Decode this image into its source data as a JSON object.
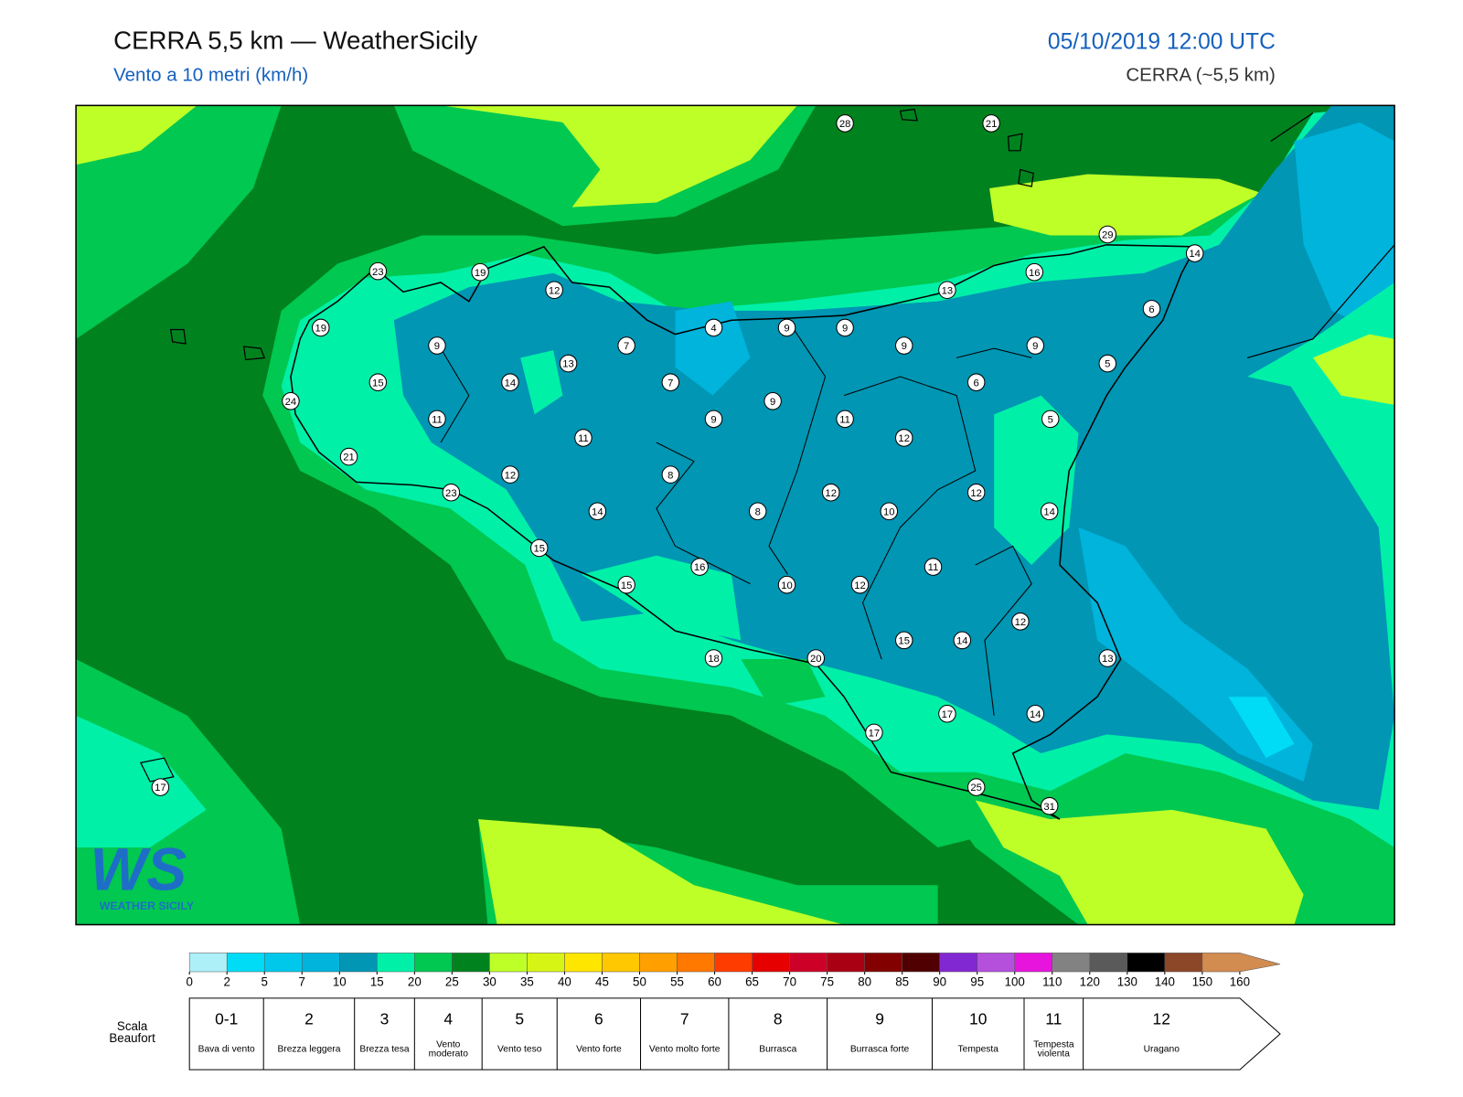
{
  "header": {
    "title": "CERRA 5,5 km — WeatherSicily",
    "subtitle": "Vento a 10 metri (km/h)",
    "date": "05/10/2019 12:00 UTC",
    "model": "CERRA (~5,5 km)"
  },
  "logo": {
    "mark": "WS",
    "name": "WEATHER SICILY"
  },
  "stations": [
    28,
    21,
    29,
    14,
    23,
    19,
    12,
    16,
    13,
    6,
    19,
    9,
    7,
    4,
    9,
    9,
    9,
    9,
    5,
    15,
    14,
    13,
    7,
    6,
    24,
    9,
    11,
    9,
    11,
    5,
    11,
    12,
    21,
    12,
    8,
    23,
    12,
    12,
    14,
    8,
    10,
    14,
    15,
    16,
    11,
    15,
    10,
    12,
    12,
    15,
    14,
    18,
    20,
    13,
    17,
    14,
    17,
    17,
    25,
    31
  ],
  "colorbar": {
    "ticks": [
      0,
      2,
      5,
      7,
      10,
      15,
      20,
      25,
      30,
      35,
      40,
      45,
      50,
      55,
      60,
      65,
      70,
      75,
      80,
      85,
      90,
      95,
      100,
      110,
      120,
      130,
      140,
      150,
      160
    ],
    "colors": [
      "#aef0f8",
      "#00dcf5",
      "#00c8eb",
      "#00b4dc",
      "#0096b4",
      "#00f0a8",
      "#00c850",
      "#00821e",
      "#beff28",
      "#d7f514",
      "#ffe600",
      "#ffc800",
      "#ffa000",
      "#ff7800",
      "#ff3c00",
      "#e60000",
      "#cd0028",
      "#aa0014",
      "#820000",
      "#500000",
      "#8228d2",
      "#b450dc",
      "#e614dc",
      "#828282",
      "#5a5a5a",
      "#000000",
      "#8c4628",
      "#d28c50"
    ]
  },
  "beaufort": {
    "title": "Scala Beaufort",
    "levels": [
      {
        "force": "0-1",
        "name": "Bava di vento"
      },
      {
        "force": 2,
        "name": "Brezza leggera"
      },
      {
        "force": 3,
        "name": "Brezza tesa"
      },
      {
        "force": 4,
        "name": "Vento moderato"
      },
      {
        "force": 5,
        "name": "Vento teso"
      },
      {
        "force": 6,
        "name": "Vento forte"
      },
      {
        "force": 7,
        "name": "Vento molto forte"
      },
      {
        "force": 8,
        "name": "Burrasca"
      },
      {
        "force": 9,
        "name": "Burrasca forte"
      },
      {
        "force": 10,
        "name": "Tempesta"
      },
      {
        "force": 11,
        "name": "Tempesta violenta"
      },
      {
        "force": 12,
        "name": "Uragano"
      }
    ]
  }
}
